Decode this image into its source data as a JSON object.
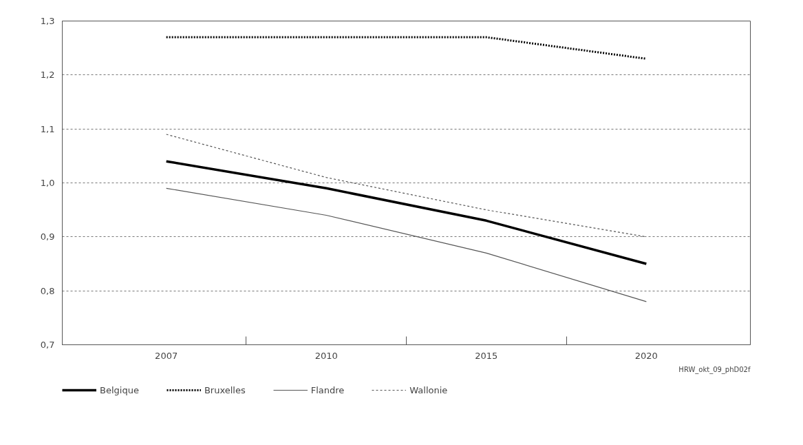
{
  "chart_data": {
    "type": "line",
    "categories": [
      "2007",
      "2010",
      "2015",
      "2020"
    ],
    "series": [
      {
        "name": "Belgique",
        "color": "#000000",
        "line_style": "solid",
        "values": [
          1.04,
          0.99,
          0.93,
          0.85
        ]
      },
      {
        "name": "Bruxelles",
        "color": "#000000",
        "line_style": "dotted",
        "values": [
          1.27,
          1.27,
          1.27,
          1.23
        ]
      },
      {
        "name": "Flandre",
        "color": "#555555",
        "line_style": "solid",
        "values": [
          0.99,
          0.94,
          0.87,
          0.78
        ]
      },
      {
        "name": "Wallonie",
        "color": "#555555",
        "line_style": "dashed",
        "values": [
          1.09,
          1.01,
          0.95,
          0.9
        ]
      }
    ],
    "ylim": [
      0.7,
      1.3
    ],
    "yticks": [
      {
        "value": 0.7,
        "label": "0,7"
      },
      {
        "value": 0.8,
        "label": "0,8"
      },
      {
        "value": 0.9,
        "label": "0,9"
      },
      {
        "value": 1.0,
        "label": "1,0"
      },
      {
        "value": 1.1,
        "label": "1,1"
      },
      {
        "value": 1.2,
        "label": "1,2"
      },
      {
        "value": 1.3,
        "label": "1,3"
      }
    ],
    "grid": "y",
    "legend": "bottom",
    "marker": "none",
    "annotations": [
      "HRW_okt_09_phD02f"
    ]
  }
}
